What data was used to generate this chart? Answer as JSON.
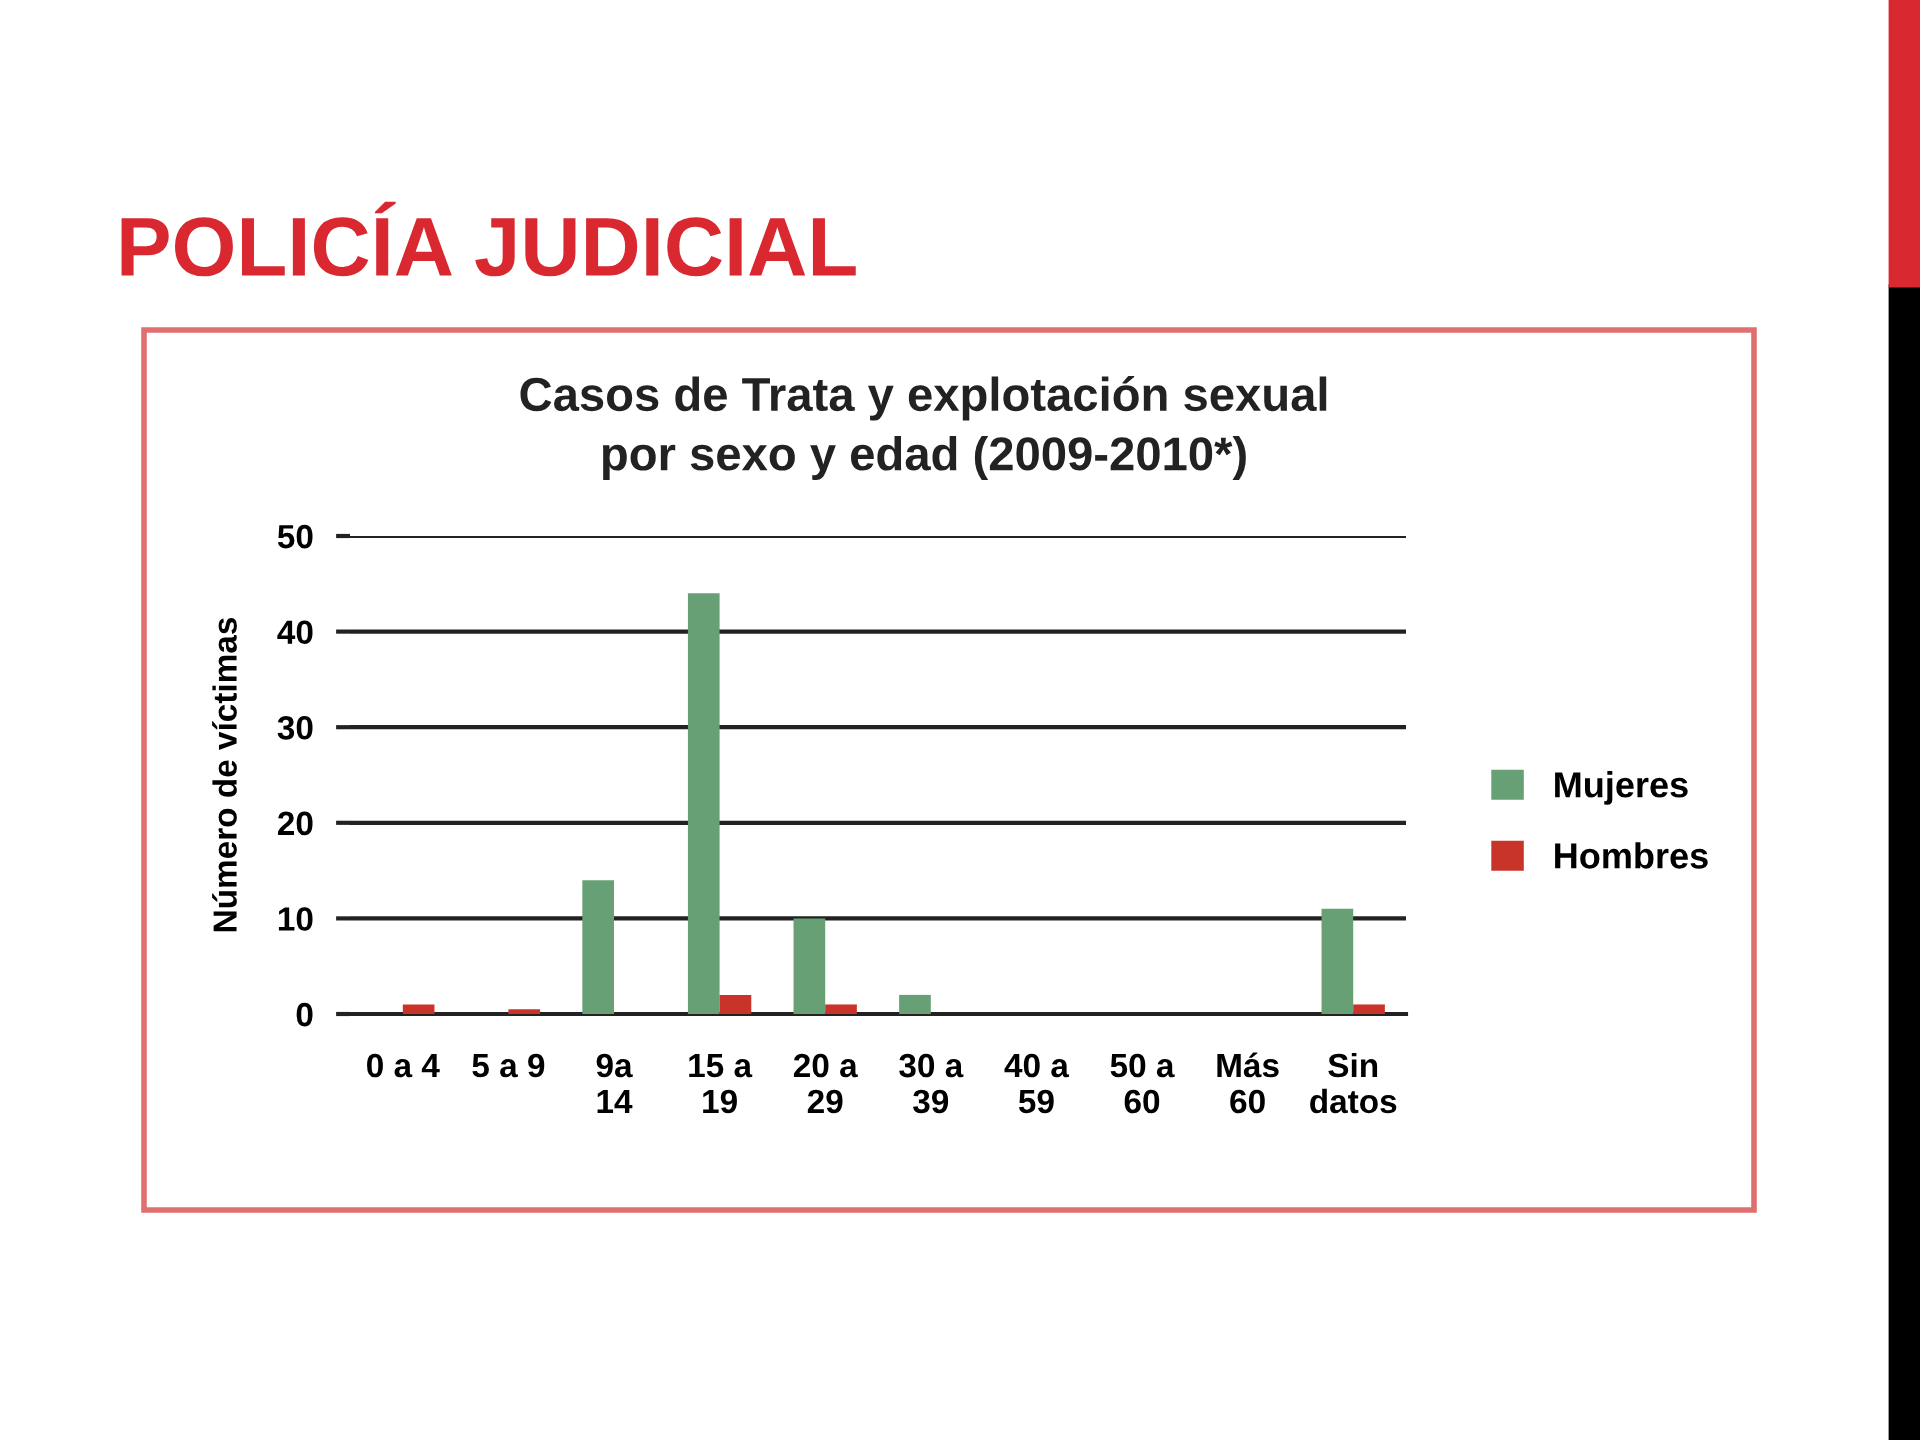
{
  "chart_data": {
    "type": "bar",
    "title": "POLICÍA JUDICIAL",
    "subtitle": "Casos de Trata y explotación sexual\npor sexo y edad (2009-2010*)",
    "ylabel": "Número de víctimas",
    "categories": [
      "0 a 4",
      "5 a 9",
      "9a\n14",
      "15 a\n19",
      "20 a\n29",
      "30 a\n39",
      "40 a\n59",
      "50 a\n60",
      "Más\n60",
      "Sin\ndatos"
    ],
    "series": [
      {
        "name": "Mujeres",
        "color": "#66a074",
        "values": [
          0,
          0,
          14,
          44,
          10,
          2,
          0,
          0,
          0,
          11
        ]
      },
      {
        "name": "Hombres",
        "color": "#c9342a",
        "values": [
          1,
          0.5,
          0,
          2,
          1,
          0,
          0,
          0,
          0,
          1
        ]
      }
    ],
    "ylim": [
      0,
      50
    ],
    "yticks": [
      0,
      10,
      20,
      30,
      40,
      50
    ],
    "grid": "y",
    "legend": "right"
  }
}
